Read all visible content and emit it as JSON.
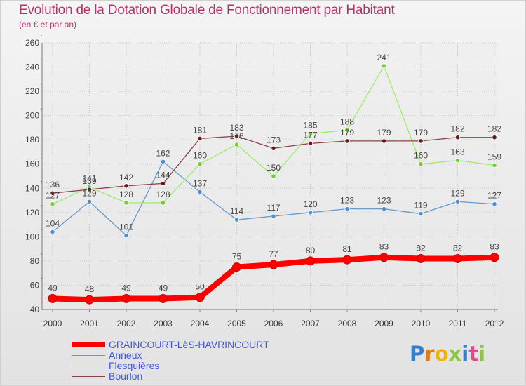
{
  "header": {
    "title": "Evolution de la Dotation Globale de Fonctionnement par Habitant",
    "subtitle": "(en € et par an)"
  },
  "logo": {
    "text": "Proxiti",
    "colors": [
      "#2e7fd6",
      "#e07a1a",
      "#f0b400",
      "#8ec63f",
      "#2e7fd6",
      "#e04a8a",
      "#8ec63f"
    ]
  },
  "chart_data": {
    "type": "line",
    "title": "Evolution de la Dotation Globale de Fonctionnement par Habitant",
    "subtitle": "(en € et par an)",
    "xlabel": "",
    "ylabel": "",
    "categories": [
      "2000",
      "2001",
      "2002",
      "2003",
      "2004",
      "2005",
      "2006",
      "2007",
      "2008",
      "2009",
      "2010",
      "2011",
      "2012"
    ],
    "ylim": [
      40,
      260
    ],
    "yticks": [
      "40",
      "60",
      "80",
      "100",
      "120",
      "140",
      "160",
      "180",
      "200",
      "220",
      "240",
      "260"
    ],
    "grid": true,
    "legend_position": "bottom-left",
    "series": [
      {
        "name": "GRAINCOURT-LèS-HAVRINCOURT",
        "color": "#ff0000",
        "marker_color": "#ff0000",
        "values": [
          49,
          48,
          49,
          49,
          50,
          75,
          77,
          80,
          81,
          83,
          82,
          82,
          83
        ],
        "labels": [
          "49",
          "48",
          "49",
          "49",
          "50",
          "75",
          "77",
          "80",
          "81",
          "83",
          "82",
          "82",
          "83"
        ]
      },
      {
        "name": "Anneux",
        "color": "#6699cc",
        "marker_color": "#4a90d9",
        "values": [
          104,
          129,
          101,
          162,
          137,
          114,
          117,
          120,
          123,
          123,
          119,
          129,
          127
        ],
        "labels": [
          "104",
          "129",
          "101",
          "162",
          "137",
          "114",
          "117",
          "120",
          "123",
          "123",
          "119",
          "129",
          "127"
        ]
      },
      {
        "name": "Flesquières",
        "color": "#99ee66",
        "marker_color": "#77cc33",
        "values": [
          127,
          141,
          128,
          128,
          160,
          176,
          150,
          185,
          188,
          241,
          160,
          163,
          159
        ],
        "labels": [
          "127",
          "141",
          "128",
          "128",
          "160",
          "176",
          "150",
          "185",
          "188",
          "241",
          "160",
          "163",
          "159"
        ]
      },
      {
        "name": "Bourlon",
        "color": "#884444",
        "marker_color": "#661a1a",
        "values": [
          136,
          139,
          142,
          144,
          181,
          183,
          173,
          177,
          179,
          179,
          179,
          182,
          182
        ],
        "labels": [
          "136",
          "139",
          "142",
          "144",
          "181",
          "183",
          "173",
          "177",
          "179",
          "179",
          "179",
          "182",
          "182"
        ]
      }
    ]
  }
}
